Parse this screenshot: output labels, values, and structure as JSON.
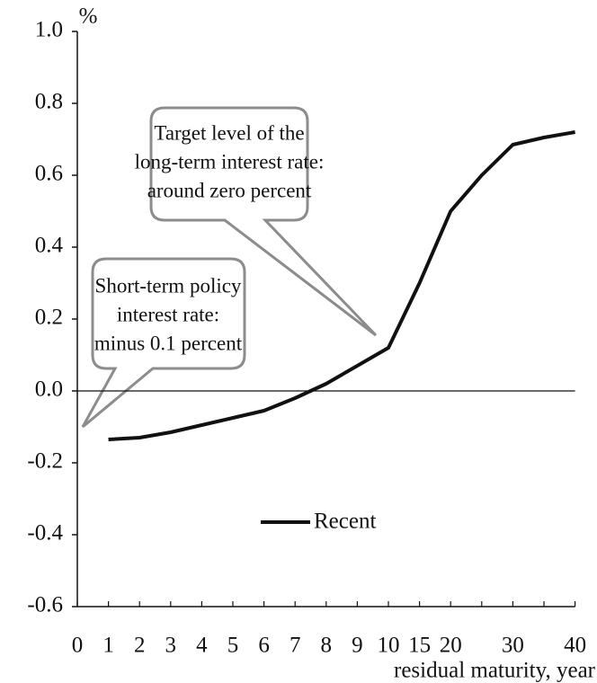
{
  "chart_data": {
    "type": "line",
    "unit_label": "%",
    "x_label": "residual maturity, year",
    "categories": [
      "0",
      "1",
      "2",
      "3",
      "4",
      "5",
      "6",
      "7",
      "8",
      "9",
      "10",
      "15",
      "20",
      null,
      "30",
      null,
      "40"
    ],
    "series": [
      {
        "name": "Recent",
        "color": "#111111",
        "values": [
          null,
          -0.135,
          -0.13,
          -0.115,
          -0.095,
          -0.075,
          -0.055,
          -0.02,
          0.02,
          0.07,
          0.12,
          0.3,
          0.5,
          0.6,
          0.685,
          0.705,
          0.72
        ]
      }
    ],
    "ylim": [
      -0.6,
      1.0
    ],
    "yticks": [
      {
        "value": -0.6,
        "label": "-0.6"
      },
      -0.4,
      -0.2,
      {
        "value": 0,
        "label": "0.0"
      },
      0.2,
      0.4,
      0.6,
      0.8,
      {
        "value": 1,
        "label": "1.0"
      }
    ],
    "annotations": [
      {
        "lines": [
          "Target level of the",
          "long-term interest rate:",
          "around zero percent"
        ]
      },
      {
        "lines": [
          "Short-term policy",
          "interest rate:",
          "minus  0.1 percent"
        ]
      }
    ]
  }
}
